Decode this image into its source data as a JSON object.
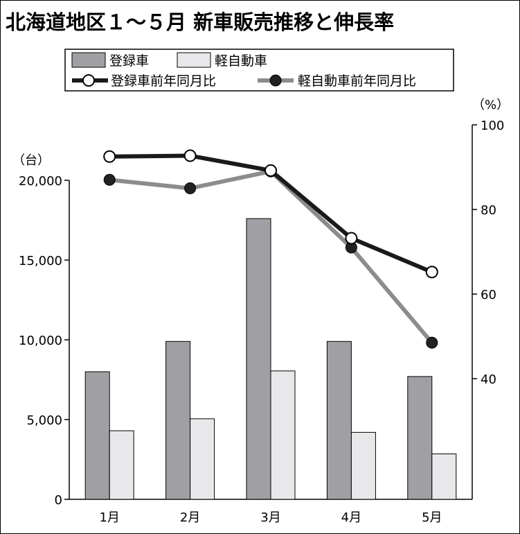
{
  "title": "北海道地区１～５月 新車販売推移と伸長率",
  "colors": {
    "registered_bar": "#a0a0a4",
    "kei_bar": "#e8e8ea",
    "registered_line": "#1a1a1a",
    "kei_line": "#8c8c8c"
  },
  "chart_data": {
    "type": "bar",
    "categories": [
      "1月",
      "2月",
      "3月",
      "4月",
      "5月"
    ],
    "series": [
      {
        "name": "登録車",
        "type": "bar",
        "axis": "left",
        "values": [
          8000,
          9900,
          17600,
          9900,
          7700
        ]
      },
      {
        "name": "軽自動車",
        "type": "bar",
        "axis": "left",
        "values": [
          4300,
          5050,
          8050,
          4200,
          2850
        ]
      },
      {
        "name": "登録車前年同月比",
        "type": "line",
        "axis": "right",
        "marker": "hollow-circle",
        "values": [
          92.5,
          92.7,
          89.2,
          73.2,
          65.2
        ]
      },
      {
        "name": "軽自動車前年同月比",
        "type": "line",
        "axis": "right",
        "marker": "filled-circle",
        "values": [
          87.0,
          85.0,
          89.0,
          71.0,
          48.5
        ]
      }
    ],
    "y_left": {
      "unit": "（台）",
      "ticks": [
        "0",
        "5,000",
        "10,000",
        "15,000",
        "20,000"
      ],
      "tick_values": [
        0,
        5000,
        10000,
        15000,
        20000
      ],
      "ylim": [
        0,
        20000
      ]
    },
    "y_right": {
      "unit": "（%）",
      "ticks": [
        "40",
        "60",
        "80",
        "100"
      ],
      "tick_values": [
        40,
        60,
        80,
        100
      ],
      "ylim": [
        40,
        100
      ]
    },
    "legend": {
      "placement": "top-left"
    },
    "grid": false
  }
}
